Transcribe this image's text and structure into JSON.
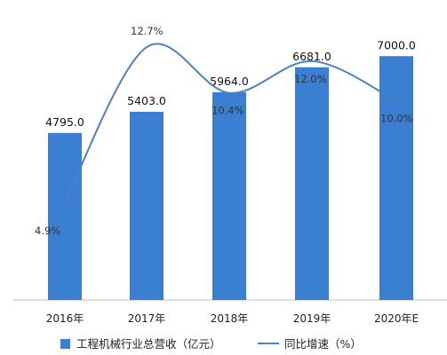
{
  "chart_data": {
    "type": "bar",
    "categories": [
      "2016年",
      "2017年",
      "2018年",
      "2019年",
      "2020年E"
    ],
    "series": [
      {
        "name": "工程机械行业总营收（亿元）",
        "type": "bar",
        "axis": "left",
        "values": [
          4795.0,
          5403.0,
          5964.0,
          6681.0,
          7000.0
        ],
        "labels": [
          "4795.0",
          "5403.0",
          "5964.0",
          "6681.0",
          "7000.0"
        ]
      },
      {
        "name": "同比增速（%）",
        "type": "line",
        "axis": "right",
        "values": [
          4.9,
          12.7,
          10.4,
          12.0,
          10.0
        ],
        "labels": [
          "4.9%",
          "12.7%",
          "10.4%",
          "12.0%",
          "10.0%"
        ]
      }
    ],
    "ylim_left": [
      0,
      8000
    ],
    "ylim_right": [
      0,
      14
    ],
    "title": "",
    "xlabel": "",
    "ylabel": "",
    "grid": false,
    "legend_position": "bottom",
    "colors": {
      "bar": "#3a7fd2",
      "line": "#4f81bd"
    }
  }
}
